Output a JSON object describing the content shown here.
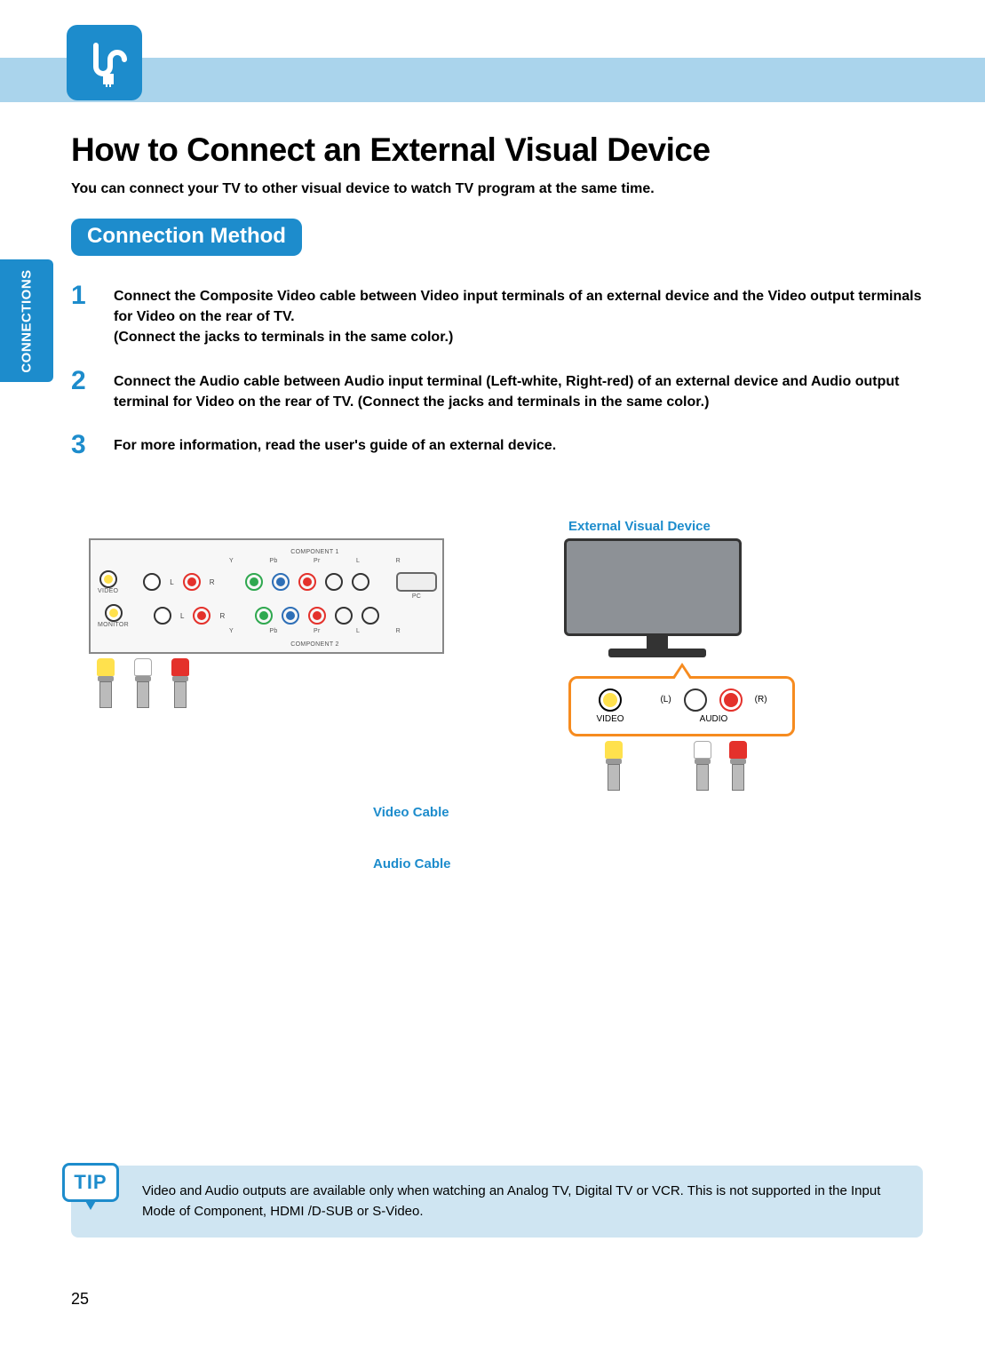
{
  "colors": {
    "accent": "#1d8ccc",
    "band": "#aad4ec",
    "tip_bg": "#cfe5f2",
    "orange": "#f68b1f",
    "yellow_jack": "#ffe14d",
    "white_jack": "#ffffff",
    "red_jack": "#e4312b",
    "green_jack": "#2fa84f",
    "blue_jack": "#2e6fb7"
  },
  "side_tab": "CONNECTIONS",
  "title": "How to Connect an External Visual Device",
  "intro": "You can connect your TV to other visual device to watch TV program at the same time.",
  "section_pill": "Connection Method",
  "steps": [
    {
      "num": "1",
      "text": "Connect the Composite Video cable between Video input terminals of an external device and the Video output terminals for Video on the rear of TV.\n(Connect the jacks to terminals in the same color.)"
    },
    {
      "num": "2",
      "text": "Connect the Audio cable between Audio input terminal (Left-white, Right-red) of an external device and Audio output terminal for Video on the rear of TV. (Connect the jacks and terminals in the same color.)"
    },
    {
      "num": "3",
      "text": "For more information, read the user's guide of an external device."
    }
  ],
  "diagram": {
    "external_label": "External Visual Device",
    "video_cable_label": "Video Cable",
    "audio_cable_label": "Audio Cable",
    "tv_panel": {
      "video_lbl": "VIDEO",
      "monitor_lbl": "MONITOR",
      "pc_lbl": "PC",
      "component1": "COMPONENT 1",
      "component2": "COMPONENT 2",
      "comp_sub": [
        "Y",
        "Pb",
        "Pr",
        "L",
        "R"
      ],
      "L": "L",
      "R": "R"
    },
    "callout": {
      "video": "VIDEO",
      "audio": "AUDIO",
      "L": "(L)",
      "R": "(R)"
    }
  },
  "tip": {
    "badge": "TIP",
    "text": "Video and Audio outputs are available only when watching an Analog TV, Digital TV or VCR. This is not supported in the Input Mode of Component, HDMI /D-SUB or S-Video."
  },
  "page_number": "25"
}
